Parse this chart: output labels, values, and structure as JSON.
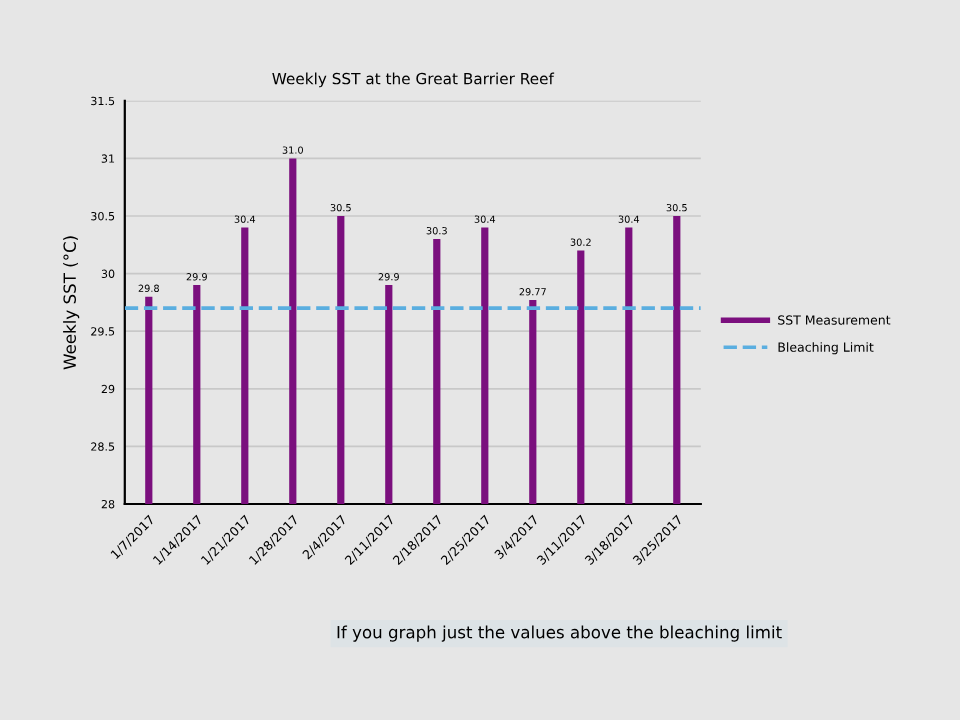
{
  "chart_data": {
    "type": "bar",
    "title": "Weekly SST at the Great Barrier Reef",
    "ylabel": "Weekly SST (°C)",
    "categories": [
      "1/7/2017",
      "1/14/2017",
      "1/21/2017",
      "1/28/2017",
      "2/4/2017",
      "2/11/2017",
      "2/18/2017",
      "2/25/2017",
      "3/4/2017",
      "3/11/2017",
      "3/18/2017",
      "3/25/2017"
    ],
    "series": [
      {
        "name": "SST Measurement",
        "color": "#7b0f7e",
        "values": [
          29.8,
          29.9,
          30.4,
          31.0,
          30.5,
          29.9,
          30.3,
          30.4,
          29.77,
          30.2,
          30.4,
          30.5
        ]
      }
    ],
    "value_labels": [
      "29.8",
      "29.9",
      "30.4",
      "31.0",
      "30.5",
      "29.9",
      "30.3",
      "30.4",
      "29.77",
      "30.2",
      "30.4",
      "30.5"
    ],
    "ylim": [
      28,
      31.5
    ],
    "yticks": [
      28,
      28.5,
      29,
      29.5,
      30,
      30.5,
      31,
      31.5
    ],
    "ref_lines": [
      {
        "axis": "y",
        "value": 29.7,
        "label": "Bleaching Limit",
        "color": "#5aaee0",
        "line_style": "dashed"
      }
    ],
    "grid": "y",
    "legend": "right",
    "annotations": [
      "If you graph just the values above the bleaching limit"
    ]
  }
}
